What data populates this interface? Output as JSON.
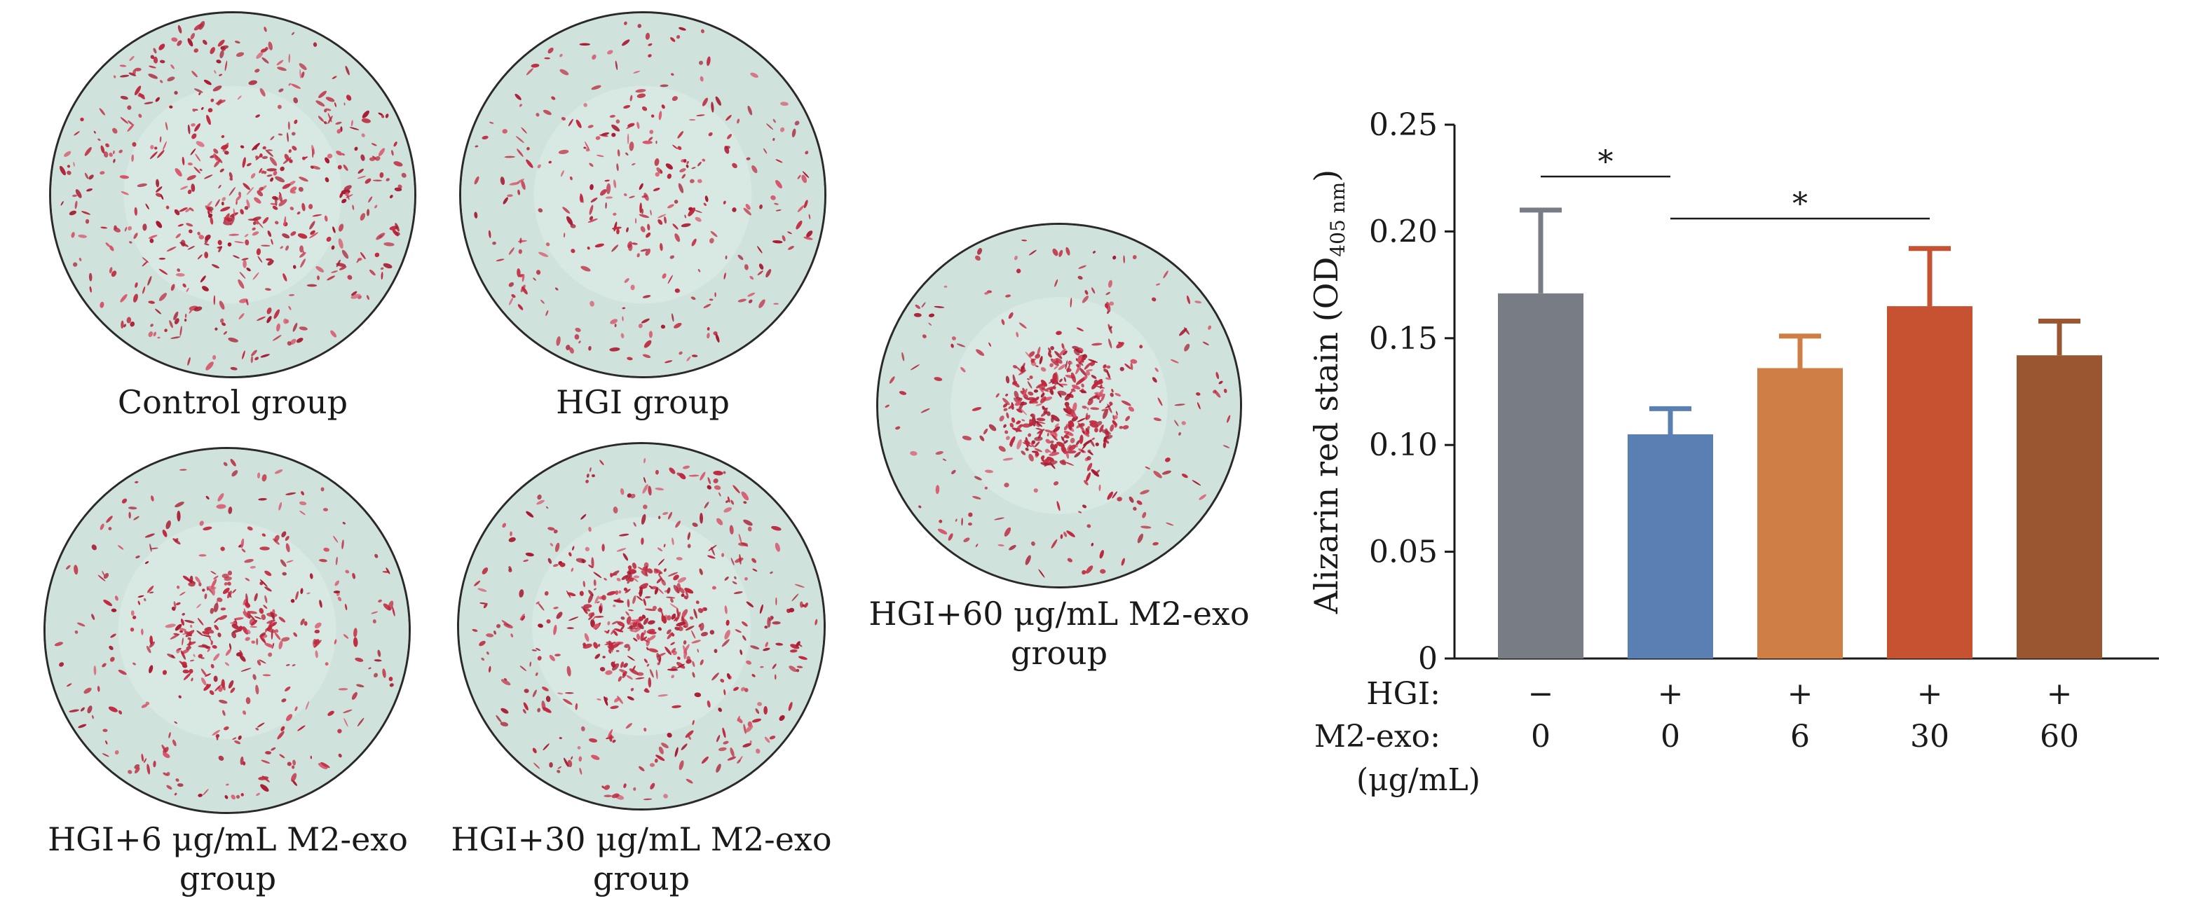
{
  "wells": [
    {
      "id": "control",
      "caption": [
        "Control group"
      ],
      "density": 1.0,
      "center_bias": 0.15
    },
    {
      "id": "hgi",
      "caption": [
        "HGI group"
      ],
      "density": 0.6,
      "center_bias": 0.1
    },
    {
      "id": "hgi6",
      "caption": [
        "HGI+6 μg/mL M2-exo",
        "group"
      ],
      "density": 0.8,
      "center_bias": 0.35
    },
    {
      "id": "hgi30",
      "caption": [
        "HGI+30 μg/mL M2-exo",
        "group"
      ],
      "density": 1.05,
      "center_bias": 0.3
    },
    {
      "id": "hgi60",
      "caption": [
        "HGI+60 μg/mL M2-exo",
        "group"
      ],
      "density": 0.95,
      "center_bias": 0.55
    }
  ],
  "chart_data": {
    "type": "bar",
    "ylabel_main": "Alizarin red stain (OD",
    "ylabel_sub": "405 nm",
    "ylabel_close": ")",
    "ylim": [
      0,
      0.25
    ],
    "yticks": [
      "0",
      "0.05",
      "0.10",
      "0.15",
      "0.20",
      "0.25"
    ],
    "ytick_values": [
      0,
      0.05,
      0.1,
      0.15,
      0.2,
      0.25
    ],
    "categories": [
      "0",
      "0",
      "6",
      "30",
      "60"
    ],
    "values": [
      0.171,
      0.105,
      0.136,
      0.165,
      0.142
    ],
    "errors": [
      0.039,
      0.012,
      0.015,
      0.027,
      0.016
    ],
    "colors": [
      "#787c84",
      "#5a7fb2",
      "#cf7f45",
      "#c65232",
      "#9a5630"
    ],
    "row_hgi_label": "HGI:",
    "row_hgi_values": [
      "−",
      "+",
      "+",
      "+",
      "+"
    ],
    "row_m2_label": "M2-exo:",
    "row_m2_unit": "(μg/mL)",
    "significance": [
      {
        "from": 0,
        "to": 1,
        "label": "*"
      },
      {
        "from": 1,
        "to": 3,
        "label": "*"
      }
    ]
  }
}
